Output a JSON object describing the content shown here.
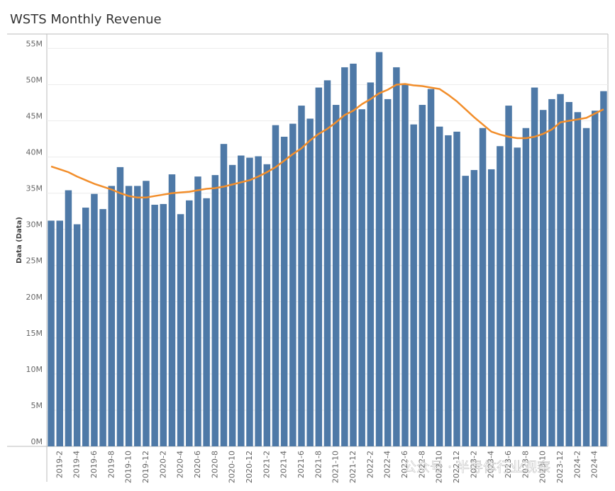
{
  "chart_data": {
    "type": "bar",
    "title": "WSTS Monthly Revenue",
    "y_label": "Data (Data)",
    "watermark": "公众号 · 半导体行业观察",
    "categories": [
      null,
      "2019-2",
      null,
      "2019-4",
      null,
      "2019-6",
      null,
      "2019-8",
      null,
      "2019-10",
      null,
      "2019-12",
      null,
      "2020-2",
      null,
      "2020-4",
      null,
      "2020-6",
      null,
      "2020-8",
      null,
      "2020-10",
      null,
      "2020-12",
      null,
      "2021-2",
      null,
      "2021-4",
      null,
      "2021-6",
      null,
      "2021-8",
      null,
      "2021-10",
      null,
      "2021-12",
      null,
      "2022-2",
      null,
      "2022-4",
      null,
      "2022-6",
      null,
      "2022-8",
      null,
      "2022-10",
      null,
      "2022-12",
      null,
      "2023-2",
      null,
      "2023-4",
      null,
      "2023-6",
      null,
      "2023-8",
      null,
      "2023-10",
      null,
      "2023-12",
      null,
      "2024-2",
      null,
      "2024-4",
      null
    ],
    "series": [
      {
        "name": "Revenue",
        "kind": "bar",
        "color": "#4e79a7",
        "values": [
          31.2,
          31.2,
          35.4,
          30.7,
          33.0,
          34.9,
          32.8,
          36.0,
          38.6,
          36.0,
          36.0,
          36.7,
          33.4,
          33.5,
          37.6,
          32.1,
          34.0,
          37.3,
          34.3,
          37.5,
          41.8,
          38.9,
          40.2,
          39.9,
          40.1,
          39.0,
          44.4,
          42.8,
          44.6,
          47.1,
          45.3,
          49.6,
          50.6,
          47.2,
          52.4,
          52.9,
          46.6,
          50.3,
          54.5,
          48.0,
          52.4,
          50.0,
          44.5,
          47.2,
          49.4,
          44.2,
          43.0,
          43.5,
          37.4,
          38.2,
          44.0,
          38.3,
          41.5,
          47.1,
          41.3,
          44.0,
          49.6,
          46.5,
          48.0,
          48.7,
          47.6,
          46.2,
          44.0,
          46.4,
          49.1
        ]
      },
      {
        "name": "Trend",
        "kind": "line",
        "color": "#f28e2b",
        "values": [
          38.7,
          38.3,
          37.9,
          37.3,
          36.8,
          36.3,
          35.9,
          35.5,
          35.0,
          34.6,
          34.4,
          34.4,
          34.6,
          34.8,
          35.0,
          35.1,
          35.2,
          35.4,
          35.6,
          35.7,
          35.9,
          36.2,
          36.5,
          36.8,
          37.3,
          37.9,
          38.6,
          39.5,
          40.4,
          41.2,
          42.3,
          43.2,
          43.9,
          44.8,
          45.8,
          46.4,
          47.3,
          48.0,
          48.8,
          49.3,
          50.0,
          50.1,
          49.9,
          49.8,
          49.6,
          49.4,
          48.6,
          47.7,
          46.6,
          45.5,
          44.5,
          43.5,
          43.1,
          42.8,
          42.6,
          42.6,
          42.8,
          43.2,
          43.8,
          44.8,
          45.0,
          45.2,
          45.4,
          46.0,
          46.6
        ]
      }
    ],
    "ylim": [
      0,
      57
    ],
    "yticks": [
      {
        "value": 0,
        "label": "0M"
      },
      {
        "value": 5,
        "label": "5M"
      },
      {
        "value": 10,
        "label": "10M"
      },
      {
        "value": 15,
        "label": "15M"
      },
      {
        "value": 20,
        "label": "20M"
      },
      {
        "value": 25,
        "label": "25M"
      },
      {
        "value": 30,
        "label": "30M"
      },
      {
        "value": 35,
        "label": "35M"
      },
      {
        "value": 40,
        "label": "40M"
      },
      {
        "value": 45,
        "label": "45M"
      },
      {
        "value": 50,
        "label": "50M"
      },
      {
        "value": 55,
        "label": "55M"
      }
    ],
    "grid": true
  }
}
